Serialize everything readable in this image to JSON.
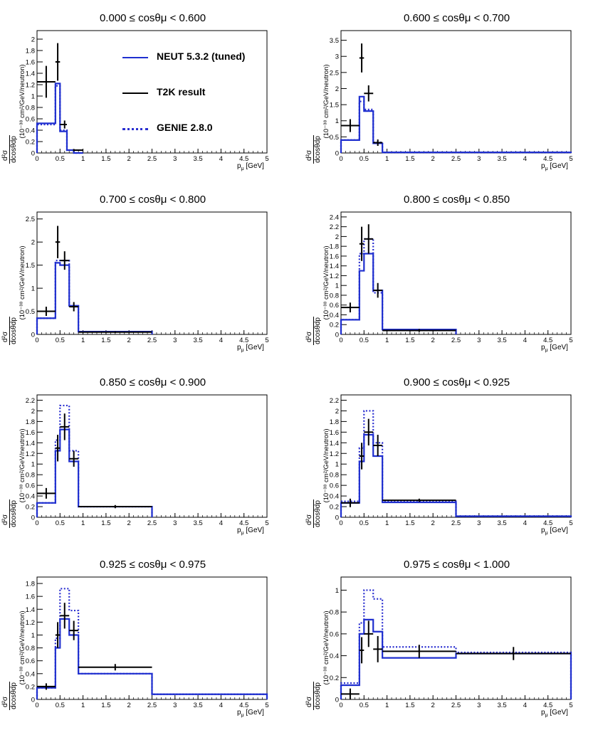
{
  "colors": {
    "neut": "#1f2fcf",
    "t2k": "#000000",
    "genie": "#2a2fd0"
  },
  "legend": [
    {
      "label": "NEUT 5.3.2 (tuned)",
      "style": "solid-blue"
    },
    {
      "label": "T2K result",
      "style": "solid-black"
    },
    {
      "label": "GENIE 2.8.0",
      "style": "dotted-blue"
    }
  ],
  "axis_text": {
    "ylabel": "(10⁻³⁸ cm²/GeV/neutron)",
    "yfrac_num": "d²σ",
    "yfrac_den": "dcosθdp",
    "xlabel": "pμ [GeV]"
  },
  "chart_data": [
    {
      "type": "histogram",
      "title": "0.000 ≤ cosθμ < 0.600",
      "xlim": [
        0,
        5
      ],
      "ylim": [
        0,
        2.15
      ],
      "yticks": [
        0,
        0.2,
        0.4,
        0.6,
        0.8,
        1,
        1.2,
        1.4,
        1.6,
        1.8,
        2
      ],
      "xticks": [
        0,
        0.5,
        1,
        1.5,
        2,
        2.5,
        3,
        3.5,
        4,
        4.5,
        5
      ],
      "bin_edges": [
        0,
        0.4,
        0.5,
        0.65,
        0.8,
        1.0
      ],
      "neut": [
        0.52,
        1.22,
        0.38,
        0.05,
        0.0
      ],
      "genie": [
        0.5,
        1.18,
        0.4,
        0.05,
        0.0
      ],
      "t2k": [
        {
          "x": 0.2,
          "y": 1.25,
          "ey": 0.28
        },
        {
          "x": 0.45,
          "y": 1.6,
          "ey": 0.33
        },
        {
          "x": 0.6,
          "y": 0.5,
          "ey": 0.07
        },
        {
          "x": 0.8,
          "y": 0.05,
          "ey": 0.02
        }
      ],
      "legend_shown": true
    },
    {
      "type": "histogram",
      "title": "0.600 ≤ cosθμ < 0.700",
      "xlim": [
        0,
        5
      ],
      "ylim": [
        0,
        3.8
      ],
      "yticks": [
        0,
        0.5,
        1,
        1.5,
        2,
        2.5,
        3,
        3.5
      ],
      "xticks": [
        0,
        0.5,
        1,
        1.5,
        2,
        2.5,
        3,
        3.5,
        4,
        4.5,
        5
      ],
      "bin_edges": [
        0,
        0.4,
        0.5,
        0.7,
        0.9,
        5.0
      ],
      "neut": [
        0.4,
        1.75,
        1.3,
        0.3,
        0.02
      ],
      "genie": [
        0.4,
        1.6,
        1.35,
        0.33,
        0.02
      ],
      "t2k": [
        {
          "x": 0.2,
          "y": 0.85,
          "ey": 0.2
        },
        {
          "x": 0.45,
          "y": 2.95,
          "ey": 0.45
        },
        {
          "x": 0.6,
          "y": 1.85,
          "ey": 0.25
        },
        {
          "x": 0.8,
          "y": 0.32,
          "ey": 0.1
        }
      ]
    },
    {
      "type": "histogram",
      "title": "0.700 ≤ cosθμ < 0.800",
      "xlim": [
        0,
        5
      ],
      "ylim": [
        0,
        2.65
      ],
      "yticks": [
        0,
        0.5,
        1,
        1.5,
        2,
        2.5
      ],
      "xticks": [
        0,
        0.5,
        1,
        1.5,
        2,
        2.5,
        3,
        3.5,
        4,
        4.5,
        5
      ],
      "bin_edges": [
        0,
        0.4,
        0.5,
        0.7,
        0.9,
        2.5
      ],
      "neut": [
        0.35,
        1.55,
        1.5,
        0.62,
        0.06
      ],
      "genie": [
        0.35,
        1.6,
        1.6,
        0.6,
        0.06
      ],
      "t2k": [
        {
          "x": 0.2,
          "y": 0.5,
          "ey": 0.1
        },
        {
          "x": 0.45,
          "y": 2.0,
          "ey": 0.35
        },
        {
          "x": 0.6,
          "y": 1.6,
          "ey": 0.2
        },
        {
          "x": 0.8,
          "y": 0.6,
          "ey": 0.1
        },
        {
          "x": 1.7,
          "y": 0.05,
          "ey": 0.02
        }
      ]
    },
    {
      "type": "histogram",
      "title": "0.800 ≤ cosθμ < 0.850",
      "xlim": [
        0,
        5
      ],
      "ylim": [
        0,
        2.5
      ],
      "yticks": [
        0,
        0.2,
        0.4,
        0.6,
        0.8,
        1,
        1.2,
        1.4,
        1.6,
        1.8,
        2,
        2.2,
        2.4
      ],
      "xticks": [
        0,
        0.5,
        1,
        1.5,
        2,
        2.5,
        3,
        3.5,
        4,
        4.5,
        5
      ],
      "bin_edges": [
        0,
        0.4,
        0.5,
        0.7,
        0.9,
        2.5
      ],
      "neut": [
        0.3,
        1.3,
        1.65,
        0.9,
        0.1
      ],
      "genie": [
        0.3,
        1.65,
        1.95,
        0.85,
        0.1
      ],
      "t2k": [
        {
          "x": 0.2,
          "y": 0.55,
          "ey": 0.1
        },
        {
          "x": 0.45,
          "y": 1.85,
          "ey": 0.35
        },
        {
          "x": 0.6,
          "y": 1.95,
          "ey": 0.3
        },
        {
          "x": 0.8,
          "y": 0.9,
          "ey": 0.15
        },
        {
          "x": 1.7,
          "y": 0.08,
          "ey": 0.03
        }
      ]
    },
    {
      "type": "histogram",
      "title": "0.850 ≤ cosθμ < 0.900",
      "xlim": [
        0,
        5
      ],
      "ylim": [
        0,
        2.3
      ],
      "yticks": [
        0,
        0.2,
        0.4,
        0.6,
        0.8,
        1,
        1.2,
        1.4,
        1.6,
        1.8,
        2,
        2.2
      ],
      "xticks": [
        0,
        0.5,
        1,
        1.5,
        2,
        2.5,
        3,
        3.5,
        4,
        4.5,
        5
      ],
      "bin_edges": [
        0,
        0.4,
        0.5,
        0.7,
        0.9,
        2.5
      ],
      "neut": [
        0.27,
        1.25,
        1.65,
        1.05,
        0.2
      ],
      "genie": [
        0.27,
        1.45,
        2.1,
        1.25,
        0.2
      ],
      "t2k": [
        {
          "x": 0.2,
          "y": 0.45,
          "ey": 0.1
        },
        {
          "x": 0.45,
          "y": 1.3,
          "ey": 0.25
        },
        {
          "x": 0.6,
          "y": 1.7,
          "ey": 0.25
        },
        {
          "x": 0.8,
          "y": 1.1,
          "ey": 0.15
        },
        {
          "x": 1.7,
          "y": 0.2,
          "ey": 0.03
        }
      ]
    },
    {
      "type": "histogram",
      "title": "0.900 ≤ cosθμ < 0.925",
      "xlim": [
        0,
        5
      ],
      "ylim": [
        0,
        2.3
      ],
      "yticks": [
        0,
        0.2,
        0.4,
        0.6,
        0.8,
        1,
        1.2,
        1.4,
        1.6,
        1.8,
        2,
        2.2
      ],
      "xticks": [
        0,
        0.5,
        1,
        1.5,
        2,
        2.5,
        3,
        3.5,
        4,
        4.5,
        5
      ],
      "bin_edges": [
        0,
        0.4,
        0.5,
        0.7,
        0.9,
        2.5,
        5.0
      ],
      "neut": [
        0.27,
        1.05,
        1.55,
        1.15,
        0.28,
        0.02
      ],
      "genie": [
        0.3,
        1.3,
        2.0,
        1.4,
        0.3,
        0.02
      ],
      "t2k": [
        {
          "x": 0.2,
          "y": 0.27,
          "ey": 0.08
        },
        {
          "x": 0.45,
          "y": 1.15,
          "ey": 0.25
        },
        {
          "x": 0.6,
          "y": 1.6,
          "ey": 0.25
        },
        {
          "x": 0.8,
          "y": 1.35,
          "ey": 0.2
        },
        {
          "x": 1.7,
          "y": 0.32,
          "ey": 0.03
        }
      ]
    },
    {
      "type": "histogram",
      "title": "0.925 ≤ cosθμ < 0.975",
      "xlim": [
        0,
        5
      ],
      "ylim": [
        0,
        1.9
      ],
      "yticks": [
        0,
        0.2,
        0.4,
        0.6,
        0.8,
        1,
        1.2,
        1.4,
        1.6,
        1.8
      ],
      "xticks": [
        0,
        0.5,
        1,
        1.5,
        2,
        2.5,
        3,
        3.5,
        4,
        4.5,
        5
      ],
      "bin_edges": [
        0,
        0.4,
        0.5,
        0.7,
        0.9,
        2.5,
        5.0
      ],
      "neut": [
        0.18,
        0.8,
        1.25,
        1.0,
        0.4,
        0.08
      ],
      "genie": [
        0.18,
        0.95,
        1.72,
        1.38,
        0.4,
        0.08
      ],
      "t2k": [
        {
          "x": 0.2,
          "y": 0.2,
          "ey": 0.05
        },
        {
          "x": 0.45,
          "y": 1.0,
          "ey": 0.2
        },
        {
          "x": 0.6,
          "y": 1.3,
          "ey": 0.2
        },
        {
          "x": 0.8,
          "y": 1.07,
          "ey": 0.15
        },
        {
          "x": 1.7,
          "y": 0.5,
          "ey": 0.05
        }
      ]
    },
    {
      "type": "histogram",
      "title": "0.975 ≤ cosθμ < 1.000",
      "xlim": [
        0,
        5
      ],
      "ylim": [
        0,
        1.12
      ],
      "yticks": [
        0,
        0.2,
        0.4,
        0.6,
        0.8,
        1
      ],
      "xticks": [
        0,
        0.5,
        1,
        1.5,
        2,
        2.5,
        3,
        3.5,
        4,
        4.5,
        5
      ],
      "bin_edges": [
        0,
        0.4,
        0.5,
        0.7,
        0.9,
        2.5,
        5.0
      ],
      "neut": [
        0.13,
        0.6,
        0.73,
        0.62,
        0.38,
        0.42
      ],
      "genie": [
        0.15,
        0.7,
        1.0,
        0.92,
        0.48,
        0.43
      ],
      "t2k": [
        {
          "x": 0.2,
          "y": 0.05,
          "ey": 0.05
        },
        {
          "x": 0.45,
          "y": 0.45,
          "ey": 0.12
        },
        {
          "x": 0.6,
          "y": 0.6,
          "ey": 0.12
        },
        {
          "x": 0.8,
          "y": 0.46,
          "ey": 0.12
        },
        {
          "x": 1.7,
          "y": 0.44,
          "ey": 0.06
        },
        {
          "x": 3.75,
          "y": 0.42,
          "ey": 0.06
        }
      ]
    }
  ]
}
